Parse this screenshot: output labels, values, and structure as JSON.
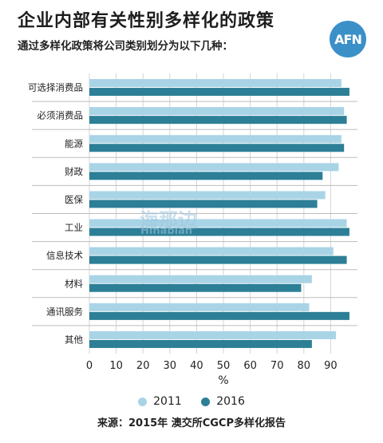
{
  "title": "企业内部有关性别多样化的政策",
  "subtitle": "通过多样化政策将公司类别划分为以下几种：",
  "logo_text": "AFN",
  "watermark": {
    "cn": "海那边",
    "en": "Hinabian"
  },
  "source": "来源：2015年 澳交所CGCP多样化报告",
  "colors": {
    "2011": "#a9d4e6",
    "2016": "#2c7f96"
  },
  "chart_data": {
    "type": "bar",
    "orientation": "horizontal",
    "categories": [
      "可选择消费品",
      "必须消费品",
      "能源",
      "财政",
      "医保",
      "工业",
      "信息技术",
      "材料",
      "通讯服务",
      "其他"
    ],
    "series": [
      {
        "name": "2011",
        "values": [
          94,
          95,
          94,
          93,
          88,
          96,
          91,
          83,
          82,
          92
        ]
      },
      {
        "name": "2016",
        "values": [
          97,
          96,
          95,
          87,
          85,
          97,
          96,
          79,
          97,
          83
        ]
      }
    ],
    "xlabel": "%",
    "xticks": [
      0,
      10,
      20,
      30,
      40,
      50,
      60,
      70,
      80,
      90
    ],
    "xlim": [
      0,
      100
    ],
    "grid": true,
    "legend_position": "bottom"
  }
}
